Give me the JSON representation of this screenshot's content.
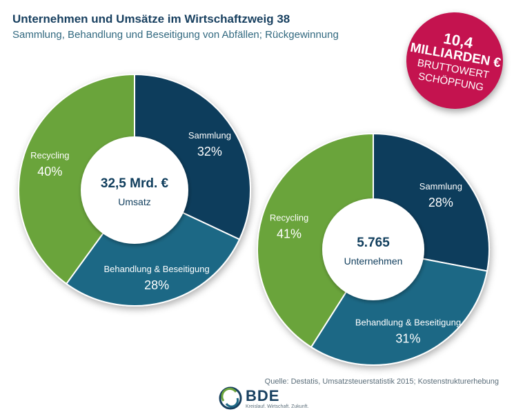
{
  "header": {
    "title": "Unternehmen und Umsätze im Wirtschaftzweig 38",
    "subtitle": "Sammlung, Behandlung und Beseitigung von Abfällen; Rückgewinnung"
  },
  "badge": {
    "line1": "10,4",
    "line2": "MILLIARDEN €",
    "line3": "BRUTTOWERT",
    "line4": "SCHÖPFUNG"
  },
  "chart_data": [
    {
      "type": "pie",
      "center_value": "32,5 Mrd. €",
      "center_label": "Umsatz",
      "slices": [
        {
          "label": "Sammlung",
          "value": 32,
          "value_label": "32%",
          "color": "#0f3d5c"
        },
        {
          "label": "Behandlung & Beseitigung",
          "value": 28,
          "value_label": "28%",
          "color": "#1d6885"
        },
        {
          "label": "Recycling",
          "value": 40,
          "value_label": "40%",
          "color": "#6ba43a"
        }
      ]
    },
    {
      "type": "pie",
      "center_value": "5.765",
      "center_label": "Unternehmen",
      "slices": [
        {
          "label": "Sammlung",
          "value": 28,
          "value_label": "28%",
          "color": "#0f3d5c"
        },
        {
          "label": "Behandlung & Beseitigung",
          "value": 31,
          "value_label": "31%",
          "color": "#1d6885"
        },
        {
          "label": "Recycling",
          "value": 41,
          "value_label": "41%",
          "color": "#6ba43a"
        }
      ]
    }
  ],
  "source": "Quelle: Destatis, Umsatzsteuerstatistik 2015; Kostenstrukturerhebung",
  "logo": {
    "name": "BDE",
    "tagline": "Kreislauf. Wirtschaft. Zukunft."
  }
}
